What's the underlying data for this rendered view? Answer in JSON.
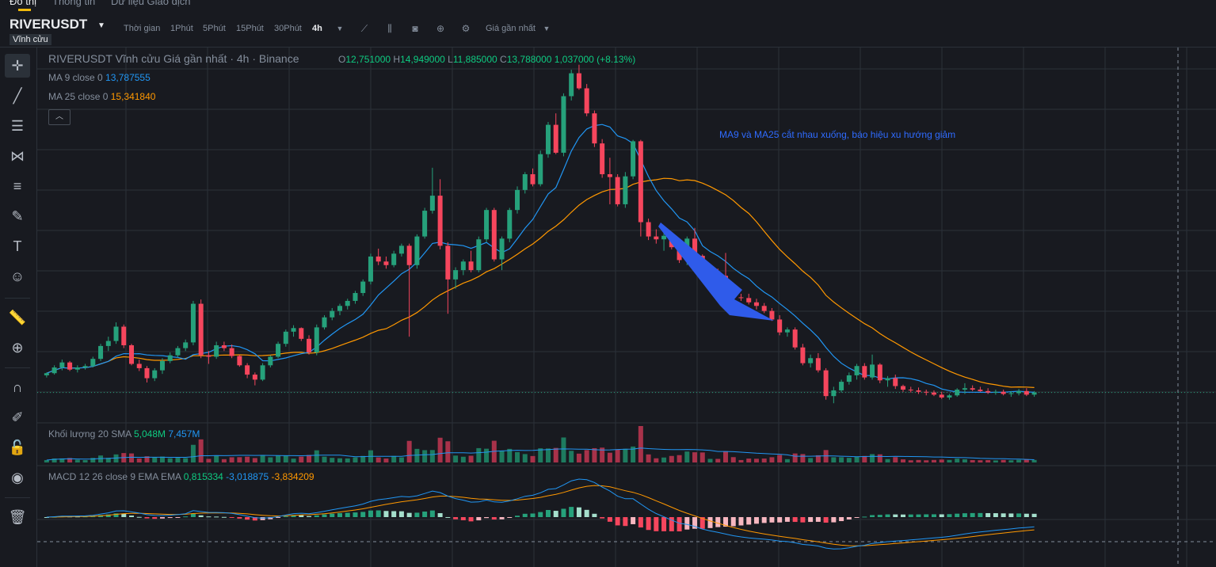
{
  "nav": {
    "tab_chart": "Đồ thị",
    "tab_info": "Thông tin",
    "tab_trading": "Dữ liệu Giao dịch"
  },
  "header": {
    "symbol": "RIVERUSDT",
    "contract_badge": "Vĩnh cửu",
    "timeframes": [
      "Thời gian",
      "1Phút",
      "5Phút",
      "15Phút",
      "30Phút",
      "4h"
    ],
    "active_timeframe": "4h",
    "price_type": "Giá gần nhất"
  },
  "legend": {
    "title": "RIVERUSDT Vĩnh cửu Giá gần nhất · 4h · Binance",
    "o_label": "O",
    "o": "12,751000",
    "h_label": "H",
    "h": "14,949000",
    "l_label": "L",
    "l": "11,885000",
    "c_label": "C",
    "c": "13,788000",
    "change": "1,037000 (+8.13%)",
    "ma9_label": "MA 9 close 0",
    "ma9_value": "13,787555",
    "ma25_label": "MA 25 close 0",
    "ma25_value": "15,341840",
    "vol_label": "Khối lượng 20 SMA",
    "vol_value": "5,048M",
    "vol_sma": "7,457M",
    "macd_label": "MACD 12 26 close 9 EMA EMA",
    "macd_hist": "0,815334",
    "macd_line": "-3,018875",
    "macd_signal": "-3,834209"
  },
  "annotation": "MA9 và MA25 cắt nhau xuống, báo hiệu xu hướng giảm",
  "colors": {
    "up": "#26a17b",
    "down": "#f6465d",
    "ma9": "#2196f3",
    "ma25": "#ff9800",
    "arrow": "#2f5bea",
    "grid": "#2b3139",
    "bg": "#181a20"
  },
  "icons": [
    "crosshair-icon",
    "trendline-icon",
    "horizontal-lines-icon",
    "pattern-icon",
    "fib-icon",
    "brush-icon",
    "text-icon",
    "emoji-icon",
    "ruler-icon",
    "zoom-in-icon",
    "magnet-icon",
    "lock-draw-icon",
    "lock-icon",
    "eye-icon",
    "trash-icon"
  ],
  "chart_data": {
    "type": "candlestick",
    "title": "RIVERUSDT Vĩnh cửu Giá gần nhất · 4h · Binance",
    "y_range": [
      8,
      60
    ],
    "candles": [
      [
        14.2,
        14.6,
        13.9,
        14.5
      ],
      [
        14.5,
        15.6,
        14.3,
        15.3
      ],
      [
        15.3,
        16.4,
        14.9,
        16.0
      ],
      [
        16.0,
        16.2,
        14.8,
        15.0
      ],
      [
        15.0,
        15.6,
        14.6,
        15.3
      ],
      [
        15.3,
        15.8,
        15.0,
        15.5
      ],
      [
        15.5,
        16.8,
        15.3,
        16.5
      ],
      [
        16.5,
        18.6,
        16.2,
        18.3
      ],
      [
        18.3,
        19.6,
        17.6,
        19.0
      ],
      [
        19.0,
        21.6,
        18.6,
        21.0
      ],
      [
        21.0,
        21.3,
        18.0,
        18.4
      ],
      [
        18.4,
        18.6,
        15.6,
        15.8
      ],
      [
        15.8,
        16.4,
        14.8,
        15.2
      ],
      [
        15.2,
        15.5,
        13.2,
        13.8
      ],
      [
        13.8,
        15.2,
        13.4,
        14.9
      ],
      [
        14.9,
        16.6,
        14.4,
        16.2
      ],
      [
        16.2,
        17.4,
        15.9,
        17.0
      ],
      [
        17.0,
        18.3,
        16.7,
        18.0
      ],
      [
        18.0,
        19.2,
        17.6,
        18.8
      ],
      [
        18.8,
        24.6,
        18.4,
        24.2
      ],
      [
        24.2,
        24.8,
        16.6,
        17.0
      ],
      [
        17.0,
        17.6,
        15.8,
        16.8
      ],
      [
        16.8,
        18.9,
        16.5,
        18.4
      ],
      [
        18.4,
        18.9,
        17.6,
        18.0
      ],
      [
        18.0,
        18.5,
        16.6,
        16.9
      ],
      [
        16.9,
        17.1,
        15.4,
        15.6
      ],
      [
        15.6,
        15.9,
        13.8,
        14.3
      ],
      [
        14.3,
        14.6,
        12.8,
        13.6
      ],
      [
        13.6,
        15.9,
        13.4,
        15.6
      ],
      [
        15.6,
        17.0,
        15.3,
        16.8
      ],
      [
        16.8,
        18.9,
        16.6,
        18.6
      ],
      [
        18.6,
        20.6,
        18.2,
        20.3
      ],
      [
        20.3,
        21.2,
        19.6,
        20.8
      ],
      [
        20.8,
        20.9,
        19.0,
        19.3
      ],
      [
        19.3,
        19.8,
        17.1,
        17.4
      ],
      [
        17.4,
        21.3,
        17.0,
        20.9
      ],
      [
        20.9,
        22.6,
        20.6,
        22.3
      ],
      [
        22.3,
        23.6,
        21.9,
        23.2
      ],
      [
        23.2,
        24.2,
        22.6,
        23.9
      ],
      [
        23.9,
        24.9,
        23.4,
        24.6
      ],
      [
        24.6,
        26.0,
        24.2,
        25.7
      ],
      [
        25.7,
        27.6,
        25.3,
        27.3
      ],
      [
        27.3,
        31.2,
        26.9,
        30.8
      ],
      [
        30.8,
        31.9,
        29.6,
        30.1
      ],
      [
        30.1,
        30.8,
        29.1,
        29.6
      ],
      [
        29.6,
        31.6,
        29.3,
        31.2
      ],
      [
        31.2,
        32.6,
        30.8,
        32.3
      ],
      [
        32.3,
        32.6,
        19.6,
        29.6
      ],
      [
        29.6,
        33.9,
        29.1,
        33.6
      ],
      [
        33.6,
        37.6,
        33.3,
        37.2
      ],
      [
        37.2,
        43.2,
        36.8,
        39.3
      ],
      [
        39.3,
        41.6,
        31.8,
        32.3
      ],
      [
        32.3,
        32.8,
        22.8,
        27.6
      ],
      [
        27.6,
        29.3,
        26.3,
        28.9
      ],
      [
        28.9,
        30.4,
        28.2,
        30.1
      ],
      [
        30.1,
        31.6,
        28.6,
        28.9
      ],
      [
        28.9,
        33.6,
        28.6,
        33.2
      ],
      [
        33.2,
        37.6,
        32.8,
        37.3
      ],
      [
        37.3,
        37.6,
        30.1,
        30.4
      ],
      [
        30.4,
        33.6,
        28.9,
        33.3
      ],
      [
        33.3,
        37.6,
        32.8,
        37.3
      ],
      [
        37.3,
        40.6,
        36.8,
        40.1
      ],
      [
        40.1,
        42.6,
        39.6,
        42.3
      ],
      [
        42.3,
        43.1,
        40.6,
        40.9
      ],
      [
        40.9,
        45.6,
        40.6,
        45.1
      ],
      [
        45.1,
        49.6,
        44.6,
        49.2
      ],
      [
        49.2,
        50.8,
        45.1,
        45.3
      ],
      [
        45.3,
        53.6,
        44.8,
        53.2
      ],
      [
        53.2,
        56.9,
        52.6,
        56.4
      ],
      [
        56.4,
        57.6,
        54.1,
        54.3
      ],
      [
        54.3,
        54.9,
        50.4,
        50.8
      ],
      [
        50.8,
        51.2,
        46.1,
        46.6
      ],
      [
        46.6,
        47.2,
        41.8,
        42.3
      ],
      [
        42.3,
        44.6,
        38.1,
        41.9
      ],
      [
        41.9,
        42.3,
        37.8,
        38.1
      ],
      [
        38.1,
        42.6,
        37.6,
        42.0
      ],
      [
        42.0,
        47.1,
        41.6,
        46.9
      ],
      [
        46.9,
        47.1,
        33.6,
        35.6
      ],
      [
        35.6,
        36.1,
        33.1,
        33.6
      ],
      [
        33.6,
        34.6,
        32.6,
        33.2
      ],
      [
        33.2,
        34.1,
        31.6,
        33.7
      ],
      [
        33.7,
        34.1,
        31.8,
        32.1
      ],
      [
        32.1,
        32.6,
        29.9,
        30.3
      ],
      [
        30.3,
        33.6,
        29.6,
        33.3
      ],
      [
        33.3,
        34.8,
        30.6,
        30.9
      ],
      [
        30.9,
        31.1,
        27.6,
        28.1
      ],
      [
        28.1,
        28.9,
        27.1,
        28.3
      ],
      [
        28.3,
        29.1,
        27.3,
        28.1
      ],
      [
        28.1,
        31.3,
        25.6,
        26.2
      ],
      [
        26.2,
        26.6,
        24.6,
        25.1
      ],
      [
        25.1,
        25.6,
        24.6,
        25.0
      ],
      [
        25.0,
        25.6,
        24.1,
        24.4
      ],
      [
        24.4,
        24.9,
        23.4,
        23.9
      ],
      [
        23.9,
        24.3,
        22.9,
        23.2
      ],
      [
        23.2,
        23.6,
        21.8,
        22.0
      ],
      [
        22.0,
        22.6,
        19.8,
        20.2
      ],
      [
        20.2,
        20.9,
        19.6,
        20.6
      ],
      [
        20.6,
        20.9,
        17.8,
        18.1
      ],
      [
        18.1,
        18.6,
        15.6,
        15.9
      ],
      [
        15.9,
        17.1,
        15.3,
        16.6
      ],
      [
        16.6,
        17.3,
        14.6,
        14.9
      ],
      [
        14.9,
        15.2,
        10.8,
        11.3
      ],
      [
        11.3,
        12.6,
        10.3,
        12.1
      ],
      [
        12.1,
        13.6,
        11.8,
        13.3
      ],
      [
        13.3,
        14.6,
        12.9,
        14.2
      ],
      [
        14.2,
        15.8,
        13.6,
        15.5
      ],
      [
        15.5,
        15.9,
        13.6,
        13.9
      ],
      [
        13.9,
        17.1,
        13.6,
        15.7
      ],
      [
        15.7,
        15.9,
        13.1,
        13.5
      ],
      [
        13.5,
        14.1,
        12.6,
        13.8
      ],
      [
        13.8,
        14.3,
        12.3,
        12.7
      ],
      [
        12.7,
        12.9,
        11.9,
        12.2
      ],
      [
        12.2,
        12.6,
        11.8,
        12.1
      ],
      [
        12.1,
        12.5,
        11.6,
        11.9
      ],
      [
        11.9,
        12.2,
        11.4,
        11.8
      ],
      [
        11.8,
        12.1,
        11.3,
        11.5
      ],
      [
        11.5,
        11.9,
        10.9,
        11.1
      ],
      [
        11.1,
        11.6,
        10.8,
        11.4
      ],
      [
        11.4,
        12.4,
        11.2,
        12.2
      ],
      [
        12.2,
        13.1,
        11.6,
        12.4
      ],
      [
        12.4,
        12.8,
        12.0,
        12.2
      ],
      [
        12.2,
        12.6,
        11.9,
        12.0
      ],
      [
        12.0,
        12.4,
        11.6,
        11.8
      ],
      [
        11.8,
        12.2,
        11.5,
        11.9
      ],
      [
        11.9,
        12.2,
        11.4,
        11.6
      ],
      [
        11.6,
        12.0,
        11.2,
        11.7
      ],
      [
        11.7,
        12.3,
        11.4,
        12.0
      ],
      [
        12.0,
        12.4,
        11.3,
        11.5
      ],
      [
        11.5,
        12.0,
        11.2,
        11.8
      ]
    ]
  }
}
